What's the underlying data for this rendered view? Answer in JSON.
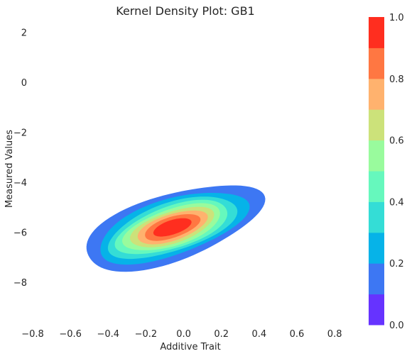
{
  "chart_data": {
    "type": "heatmap",
    "subtype": "kernel-density-contour",
    "title": "Kernel Density Plot: GB1",
    "xlabel": "Additive Trait",
    "ylabel": "Measured Values",
    "xlim": [
      -0.8,
      0.95
    ],
    "ylim": [
      -9.7,
      2.5
    ],
    "x_ticks": [
      -0.8,
      -0.6,
      -0.4,
      -0.2,
      0.0,
      0.2,
      0.4,
      0.6,
      0.8
    ],
    "x_tick_labels": [
      "−0.8",
      "−0.6",
      "−0.4",
      "−0.2",
      "0.0",
      "0.2",
      "0.4",
      "0.6",
      "0.8"
    ],
    "y_ticks": [
      2,
      0,
      -2,
      -4,
      -6,
      -8
    ],
    "y_tick_labels": [
      "2",
      "0",
      "−2",
      "−4",
      "−6",
      "−8"
    ],
    "grid": false,
    "colormap": "rainbow",
    "colorbar": {
      "range": [
        0.0,
        1.0
      ],
      "ticks": [
        0.0,
        0.2,
        0.4,
        0.6,
        0.8,
        1.0
      ],
      "tick_labels": [
        "0.0",
        "0.2",
        "0.4",
        "0.6",
        "0.8",
        "1.0"
      ],
      "levels": [
        0.0,
        0.1,
        0.2,
        0.3,
        0.4,
        0.5,
        0.6,
        0.7,
        0.8,
        0.9,
        1.0
      ],
      "colors": [
        "#6633ff",
        "#3d77f3",
        "#06b3e8",
        "#34ddd6",
        "#66f8bd",
        "#99fb9d",
        "#cce27a",
        "#ffb26e",
        "#ff7742",
        "#ff2e1f"
      ]
    },
    "density": {
      "peak": [
        -0.06,
        -5.8
      ],
      "sigma_x": 0.22,
      "sigma_y": 0.8,
      "correlation": 0.58,
      "outer_extent_x": [
        -0.49,
        0.37
      ],
      "outer_extent_y": [
        -7.3,
        -2.9
      ]
    }
  }
}
